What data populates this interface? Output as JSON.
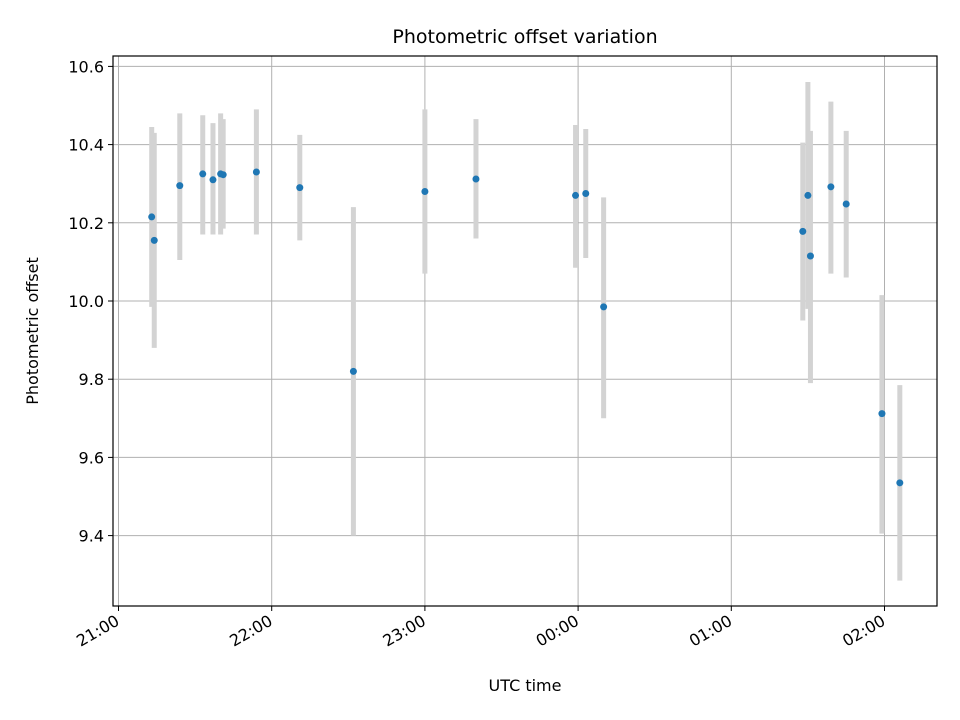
{
  "chart_data": {
    "type": "scatter",
    "title": "Photometric offset variation",
    "xlabel": "UTC time",
    "ylabel": "Photometric offset",
    "x_ticks": [
      "21:00",
      "22:00",
      "23:00",
      "00:00",
      "01:00",
      "02:00"
    ],
    "y_ticks": [
      "9.4",
      "9.6",
      "9.8",
      "10.0",
      "10.2",
      "10.4",
      "10.6"
    ],
    "x_unit": "UTC time (hours after 21:00)",
    "xlim": [
      "20:59",
      "02:20"
    ],
    "ylim": [
      9.225,
      10.625
    ],
    "grid": true,
    "marker_color": "#1f77b4",
    "errorbar_color": "#d3d3d3",
    "series": [
      {
        "points": [
          {
            "time": "21:13",
            "y": 10.215,
            "err_low": 9.985,
            "err_high": 10.445
          },
          {
            "time": "21:14",
            "y": 10.155,
            "err_low": 9.88,
            "err_high": 10.43
          },
          {
            "time": "21:24",
            "y": 10.295,
            "err_low": 10.105,
            "err_high": 10.48
          },
          {
            "time": "21:33",
            "y": 10.325,
            "err_low": 10.17,
            "err_high": 10.475
          },
          {
            "time": "21:37",
            "y": 10.31,
            "err_low": 10.17,
            "err_high": 10.455
          },
          {
            "time": "21:40",
            "y": 10.325,
            "err_low": 10.17,
            "err_high": 10.48
          },
          {
            "time": "21:41",
            "y": 10.323,
            "err_low": 10.185,
            "err_high": 10.465
          },
          {
            "time": "21:54",
            "y": 10.33,
            "err_low": 10.17,
            "err_high": 10.49
          },
          {
            "time": "22:11",
            "y": 10.29,
            "err_low": 10.155,
            "err_high": 10.425
          },
          {
            "time": "22:32",
            "y": 9.82,
            "err_low": 9.4,
            "err_high": 10.24
          },
          {
            "time": "23:00",
            "y": 10.28,
            "err_low": 10.07,
            "err_high": 10.49
          },
          {
            "time": "23:20",
            "y": 10.312,
            "err_low": 10.16,
            "err_high": 10.465
          },
          {
            "time": "23:59",
            "y": 10.27,
            "err_low": 10.085,
            "err_high": 10.45
          },
          {
            "time": "00:03",
            "y": 10.275,
            "err_low": 10.11,
            "err_high": 10.44
          },
          {
            "time": "00:10",
            "y": 9.985,
            "err_low": 9.7,
            "err_high": 10.265
          },
          {
            "time": "01:28",
            "y": 10.178,
            "err_low": 9.95,
            "err_high": 10.405
          },
          {
            "time": "01:30",
            "y": 10.27,
            "err_low": 9.98,
            "err_high": 10.56
          },
          {
            "time": "01:31",
            "y": 10.115,
            "err_low": 9.79,
            "err_high": 10.435
          },
          {
            "time": "01:39",
            "y": 10.292,
            "err_low": 10.07,
            "err_high": 10.51
          },
          {
            "time": "01:45",
            "y": 10.248,
            "err_low": 10.06,
            "err_high": 10.435
          },
          {
            "time": "01:59",
            "y": 9.712,
            "err_low": 9.405,
            "err_high": 10.015
          },
          {
            "time": "02:06",
            "y": 9.535,
            "err_low": 9.285,
            "err_high": 9.785
          }
        ]
      }
    ]
  }
}
